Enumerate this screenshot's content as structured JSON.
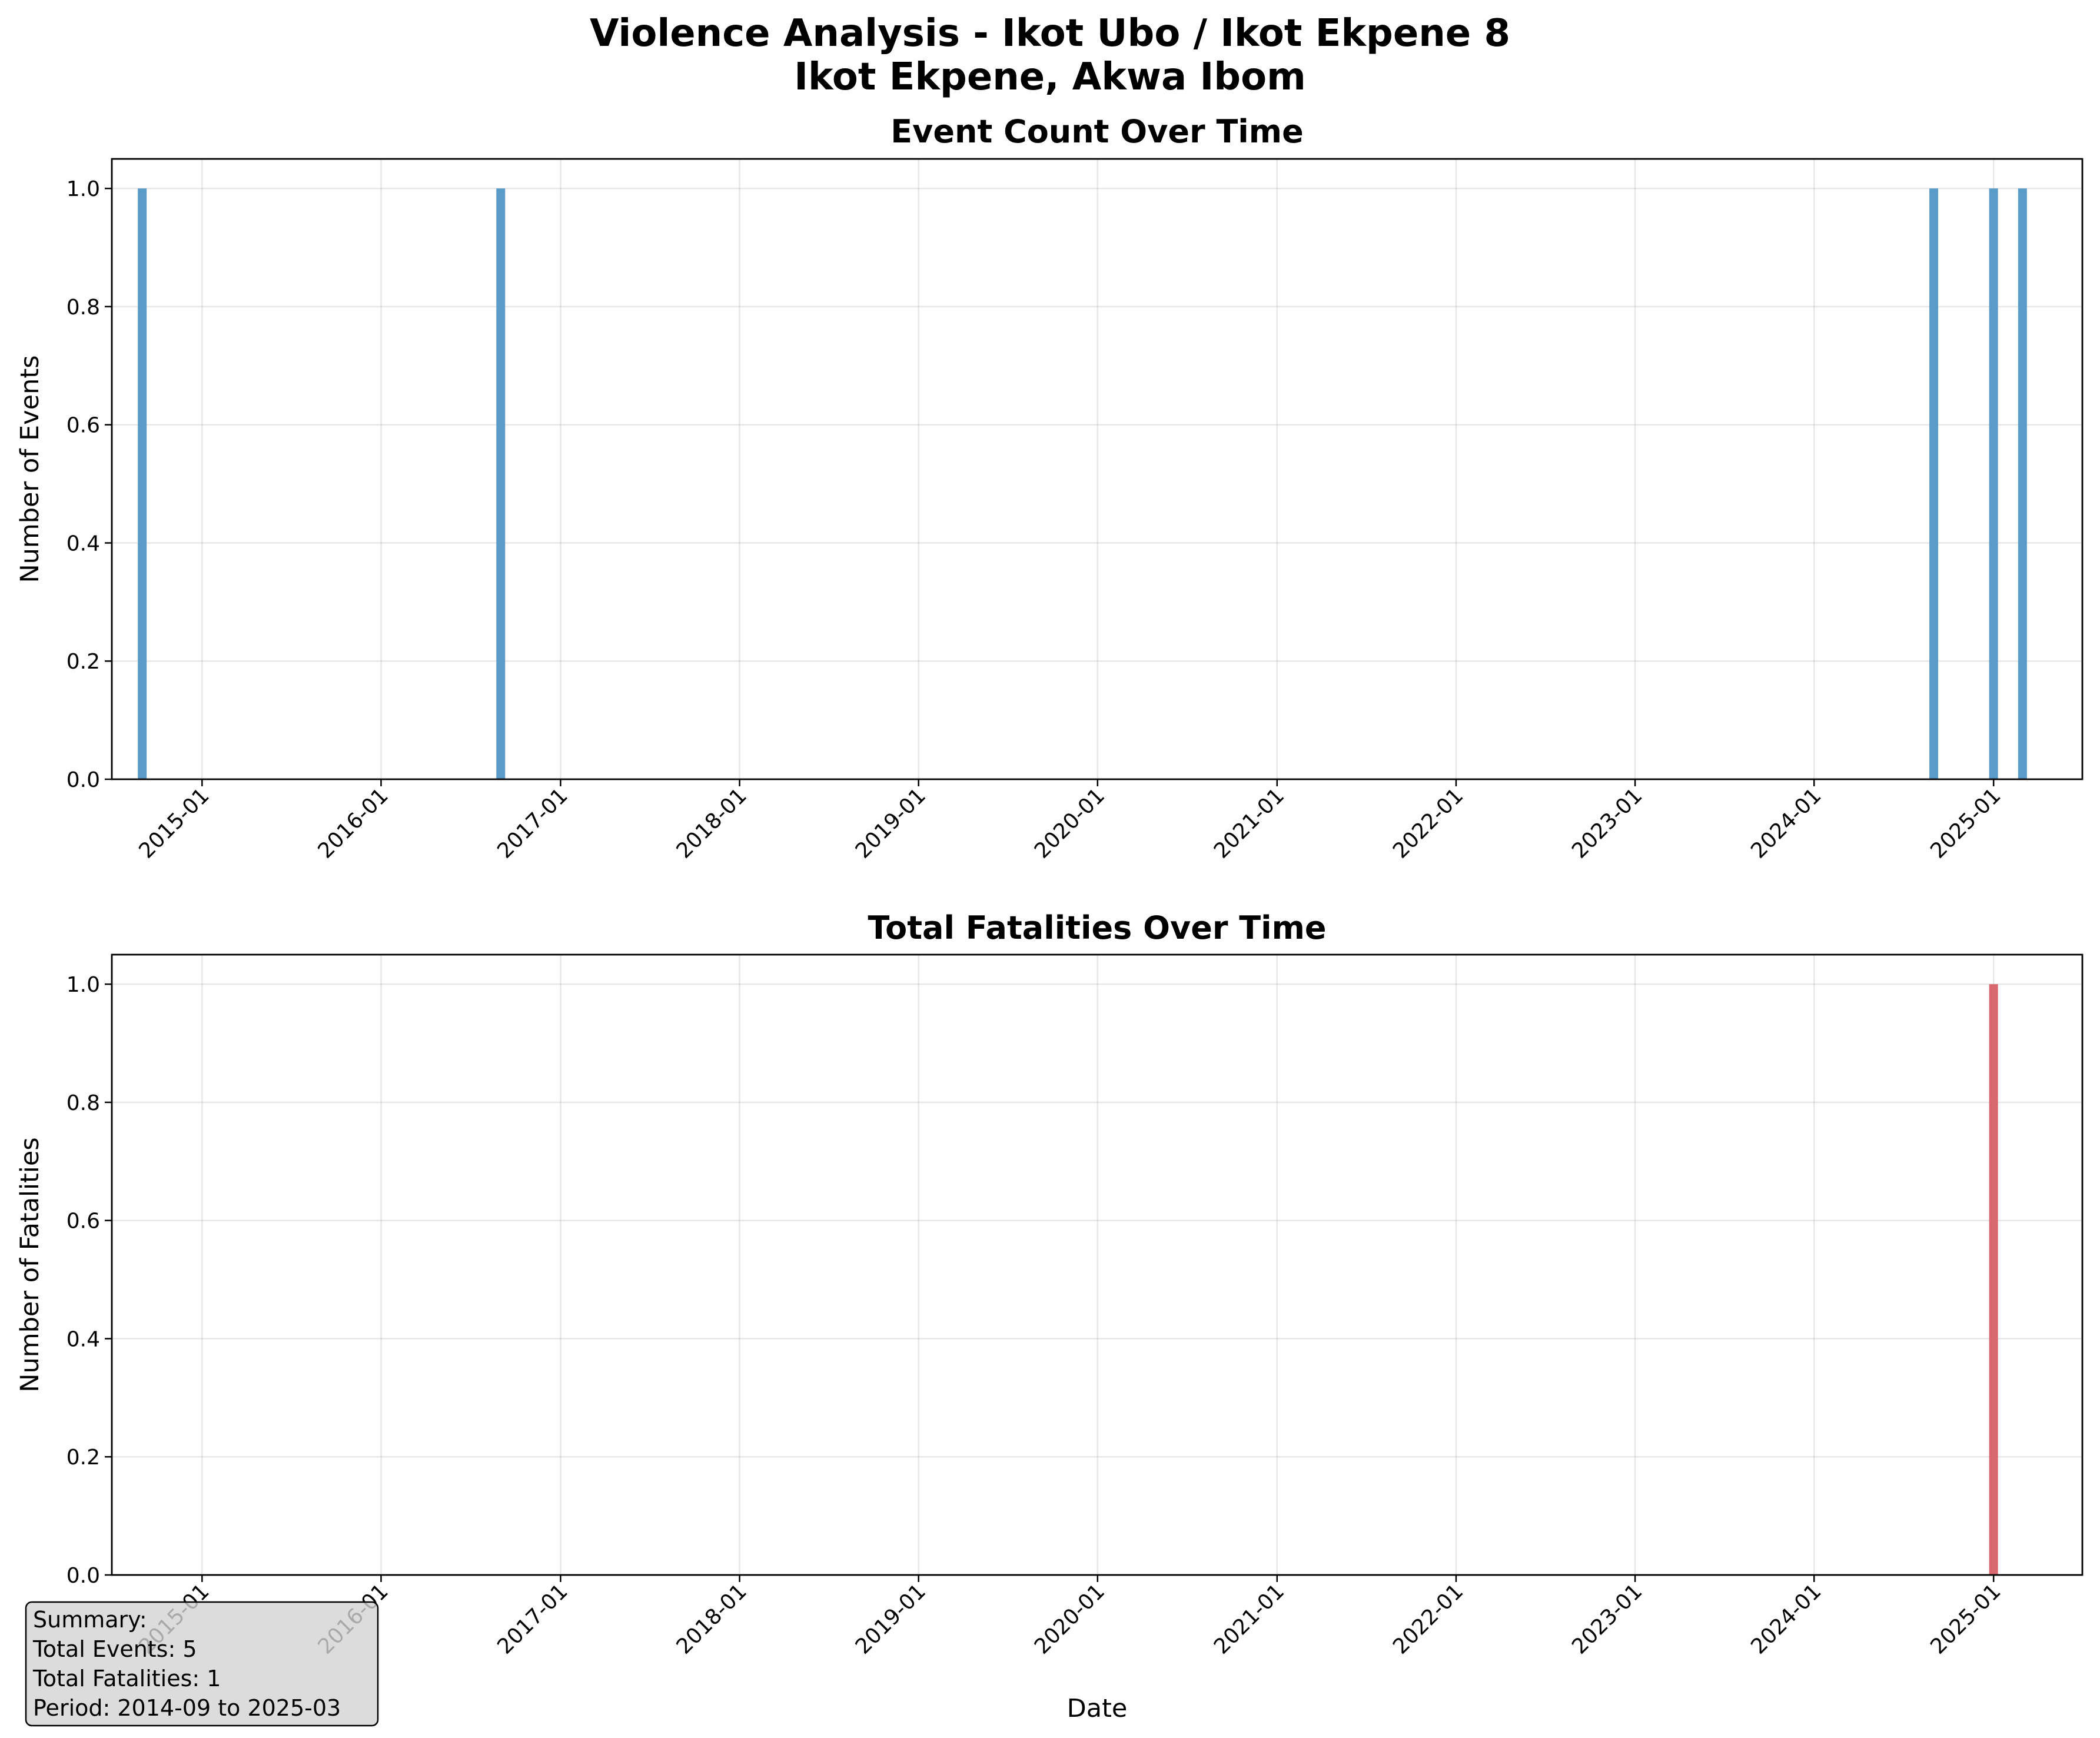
{
  "figure": {
    "title_line1": "Violence Analysis - Ikot Ubo / Ikot Ekpene 8",
    "title_line2": "Ikot Ekpene, Akwa Ibom"
  },
  "chart_data": [
    {
      "type": "bar",
      "title": "Event Count Over Time",
      "xlabel": "",
      "ylabel": "Number of Events",
      "x_type": "date",
      "xlim": [
        "2014-07-01",
        "2025-07-01"
      ],
      "ylim": [
        0,
        1.05
      ],
      "xticks": [
        "2015-01",
        "2016-01",
        "2017-01",
        "2018-01",
        "2019-01",
        "2020-01",
        "2021-01",
        "2022-01",
        "2023-01",
        "2024-01",
        "2025-01"
      ],
      "yticks": [
        "0.0",
        "0.2",
        "0.4",
        "0.6",
        "0.8",
        "1.0"
      ],
      "grid": true,
      "color": "#5b9bc9",
      "x": [
        "2014-09",
        "2016-09",
        "2024-09",
        "2025-01",
        "2025-03"
      ],
      "values": [
        1,
        1,
        1,
        1,
        1
      ]
    },
    {
      "type": "bar",
      "title": "Total Fatalities Over Time",
      "xlabel": "Date",
      "ylabel": "Number of Fatalities",
      "x_type": "date",
      "xlim": [
        "2014-07-01",
        "2025-07-01"
      ],
      "ylim": [
        0,
        1.05
      ],
      "xticks": [
        "2015-01",
        "2016-01",
        "2017-01",
        "2018-01",
        "2019-01",
        "2020-01",
        "2021-01",
        "2022-01",
        "2023-01",
        "2024-01",
        "2025-01"
      ],
      "yticks": [
        "0.0",
        "0.2",
        "0.4",
        "0.6",
        "0.8",
        "1.0"
      ],
      "grid": true,
      "color": "#d9676e",
      "x": [
        "2025-01"
      ],
      "values": [
        1
      ]
    }
  ],
  "summary": {
    "heading": "Summary:",
    "total_events": "Total Events: 5",
    "total_fatalities": "Total Fatalities: 1",
    "period": "Period: 2014-09 to 2025-03"
  }
}
